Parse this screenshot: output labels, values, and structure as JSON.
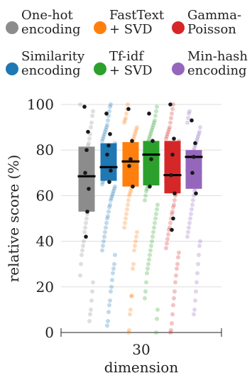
{
  "chart_data": {
    "type": "box-strip",
    "xlabel": "dimension",
    "ylabel": "relative score (%)",
    "categories": [
      "30"
    ],
    "ylim": [
      0,
      100
    ],
    "yticks": [
      0,
      20,
      40,
      60,
      80,
      100
    ],
    "grid": true,
    "legend_position": "top",
    "series": [
      {
        "name": "One-hot\nencoding",
        "color": "#8c8c8c",
        "q1": 53,
        "median": 68.5,
        "q3": 81.5,
        "highlight": [
          99,
          88,
          80,
          70,
          63,
          53,
          42
        ],
        "points": [
          100,
          97,
          95,
          92,
          90,
          87,
          85,
          83,
          82,
          80,
          79,
          78,
          76,
          75,
          74,
          73,
          71,
          70,
          69,
          68,
          66,
          65,
          63,
          62,
          60,
          58,
          57,
          55,
          52,
          50,
          48,
          46,
          44,
          40,
          38,
          36,
          34,
          30,
          25,
          22,
          18,
          14,
          10,
          8,
          5
        ]
      },
      {
        "name": "Similarity\nencoding",
        "color": "#1f77b4",
        "q1": 66.5,
        "median": 72.5,
        "q3": 83,
        "highlight": [
          96,
          87,
          82,
          78,
          71,
          66
        ],
        "points": [
          100,
          99,
          97,
          95,
          93,
          91,
          90,
          89,
          88,
          87,
          86,
          85,
          84,
          83,
          82,
          81,
          80,
          79,
          78,
          77,
          76,
          75,
          74,
          73,
          72,
          71,
          70,
          69,
          68,
          67,
          66,
          65,
          64,
          63,
          62,
          61,
          60,
          59,
          58,
          56,
          55,
          53,
          51,
          50,
          48,
          46,
          44,
          42,
          40,
          38,
          36,
          34,
          30,
          28,
          26,
          23,
          20,
          18,
          14,
          12,
          9,
          5,
          3
        ]
      },
      {
        "name": "FastText\n+ SVD",
        "color": "#ff7f0e",
        "q1": 64,
        "median": 75,
        "q3": 83.5,
        "highlight": [
          98,
          84,
          76,
          73,
          64
        ],
        "points": [
          100,
          98,
          96,
          94,
          93,
          92,
          90,
          89,
          88,
          87,
          86,
          85,
          84,
          83,
          82,
          81,
          80,
          79,
          78,
          77,
          76,
          75,
          74,
          73,
          72,
          71,
          70,
          69,
          68,
          67,
          66,
          65,
          64,
          63,
          62,
          61,
          60,
          58,
          56,
          54,
          52,
          50,
          48,
          46,
          44,
          42,
          40,
          38,
          36,
          30,
          28,
          16,
          16,
          10,
          8,
          1,
          0
        ]
      },
      {
        "name": "Tf-idf\n+ SVD",
        "color": "#2ca02c",
        "q1": 64.5,
        "median": 78,
        "q3": 84,
        "highlight": [
          96,
          84,
          76,
          64
        ],
        "points": [
          99,
          97,
          95,
          93,
          92,
          91,
          90,
          89,
          88,
          87,
          86,
          85,
          84,
          83,
          82,
          81,
          80,
          79,
          78,
          77,
          76,
          75,
          74,
          73,
          72,
          71,
          70,
          69,
          68,
          67,
          66,
          65,
          64,
          63,
          62,
          60,
          58,
          56,
          54,
          52,
          50,
          48,
          46,
          44,
          42,
          40,
          38,
          36,
          34,
          32,
          30,
          28,
          26,
          22,
          18,
          15,
          10,
          6,
          0
        ]
      },
      {
        "name": "Gamma-\nPoisson",
        "color": "#d62728",
        "q1": 61,
        "median": 69,
        "q3": 84,
        "highlight": [
          100,
          85,
          78,
          69,
          61,
          50,
          45
        ],
        "points": [
          100,
          98,
          96,
          94,
          92,
          90,
          89,
          88,
          87,
          86,
          85,
          84,
          83,
          82,
          81,
          80,
          79,
          78,
          77,
          76,
          75,
          74,
          73,
          72,
          71,
          70,
          69,
          68,
          67,
          66,
          65,
          64,
          63,
          62,
          61,
          60,
          58,
          56,
          55,
          53,
          52,
          50,
          48,
          46,
          45,
          43,
          41,
          39,
          37,
          35,
          33,
          30,
          28,
          25,
          22,
          18,
          15,
          12,
          8,
          4,
          1,
          0
        ]
      },
      {
        "name": "Min-hash\nencoding",
        "color": "#9467bd",
        "q1": 63,
        "median": 77,
        "q3": 80,
        "highlight": [
          93,
          83,
          77,
          70,
          61
        ],
        "points": [
          97,
          96,
          94,
          92,
          90,
          88,
          87,
          86,
          85,
          84,
          83,
          82,
          81,
          80,
          79,
          78,
          77,
          76,
          75,
          74,
          73,
          72,
          71,
          70,
          69,
          68,
          67,
          66,
          65,
          64,
          63,
          62,
          60,
          58,
          56,
          54,
          52,
          50,
          48,
          46,
          44,
          42,
          40,
          38,
          34,
          30,
          26,
          22,
          18,
          14,
          10,
          8
        ]
      }
    ]
  }
}
